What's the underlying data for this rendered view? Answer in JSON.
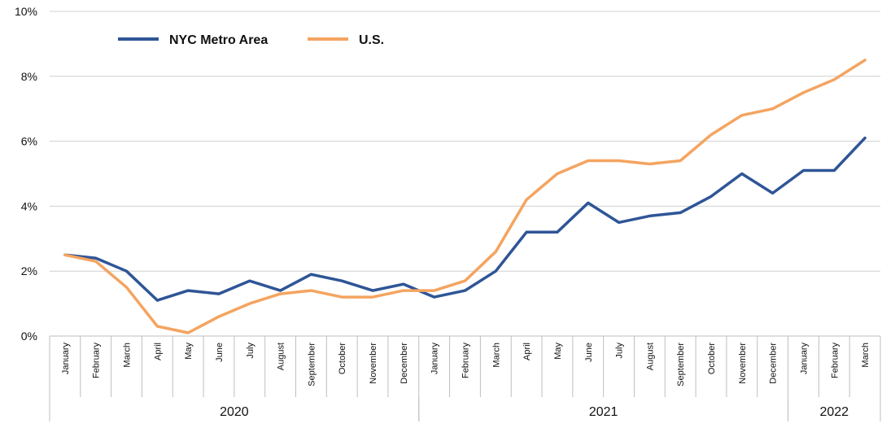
{
  "chart_data": {
    "type": "line",
    "title": "",
    "xlabel": "",
    "ylabel": "",
    "ylim": [
      0,
      10
    ],
    "yticks": [
      "0%",
      "2%",
      "4%",
      "6%",
      "8%",
      "10%"
    ],
    "ytick_values": [
      0,
      2,
      4,
      6,
      8,
      10
    ],
    "categories": [
      "January",
      "February",
      "March",
      "April",
      "May",
      "June",
      "July",
      "August",
      "September",
      "October",
      "November",
      "December",
      "January",
      "February",
      "March",
      "April",
      "May",
      "June",
      "July",
      "August",
      "September",
      "October",
      "November",
      "December",
      "January",
      "February",
      "March"
    ],
    "years": [
      {
        "label": "2020",
        "start": 0,
        "end": 11
      },
      {
        "label": "2021",
        "start": 12,
        "end": 23
      },
      {
        "label": "2022",
        "start": 24,
        "end": 26
      }
    ],
    "legend_position": "top-left",
    "grid": true,
    "series": [
      {
        "name": "NYC Metro Area",
        "color": "#2f5597",
        "values": [
          2.5,
          2.4,
          2.0,
          1.1,
          1.4,
          1.3,
          1.7,
          1.4,
          1.9,
          1.7,
          1.4,
          1.6,
          1.2,
          1.4,
          2.0,
          3.2,
          3.2,
          4.1,
          3.5,
          3.7,
          3.8,
          4.3,
          5.0,
          4.4,
          5.1,
          5.1,
          6.1
        ]
      },
      {
        "name": "U.S.",
        "color": "#f4a460",
        "values": [
          2.5,
          2.3,
          1.5,
          0.3,
          0.1,
          0.6,
          1.0,
          1.3,
          1.4,
          1.2,
          1.2,
          1.4,
          1.4,
          1.7,
          2.6,
          4.2,
          5.0,
          5.4,
          5.4,
          5.3,
          5.4,
          6.2,
          6.8,
          7.0,
          7.5,
          7.9,
          8.5
        ]
      }
    ]
  }
}
